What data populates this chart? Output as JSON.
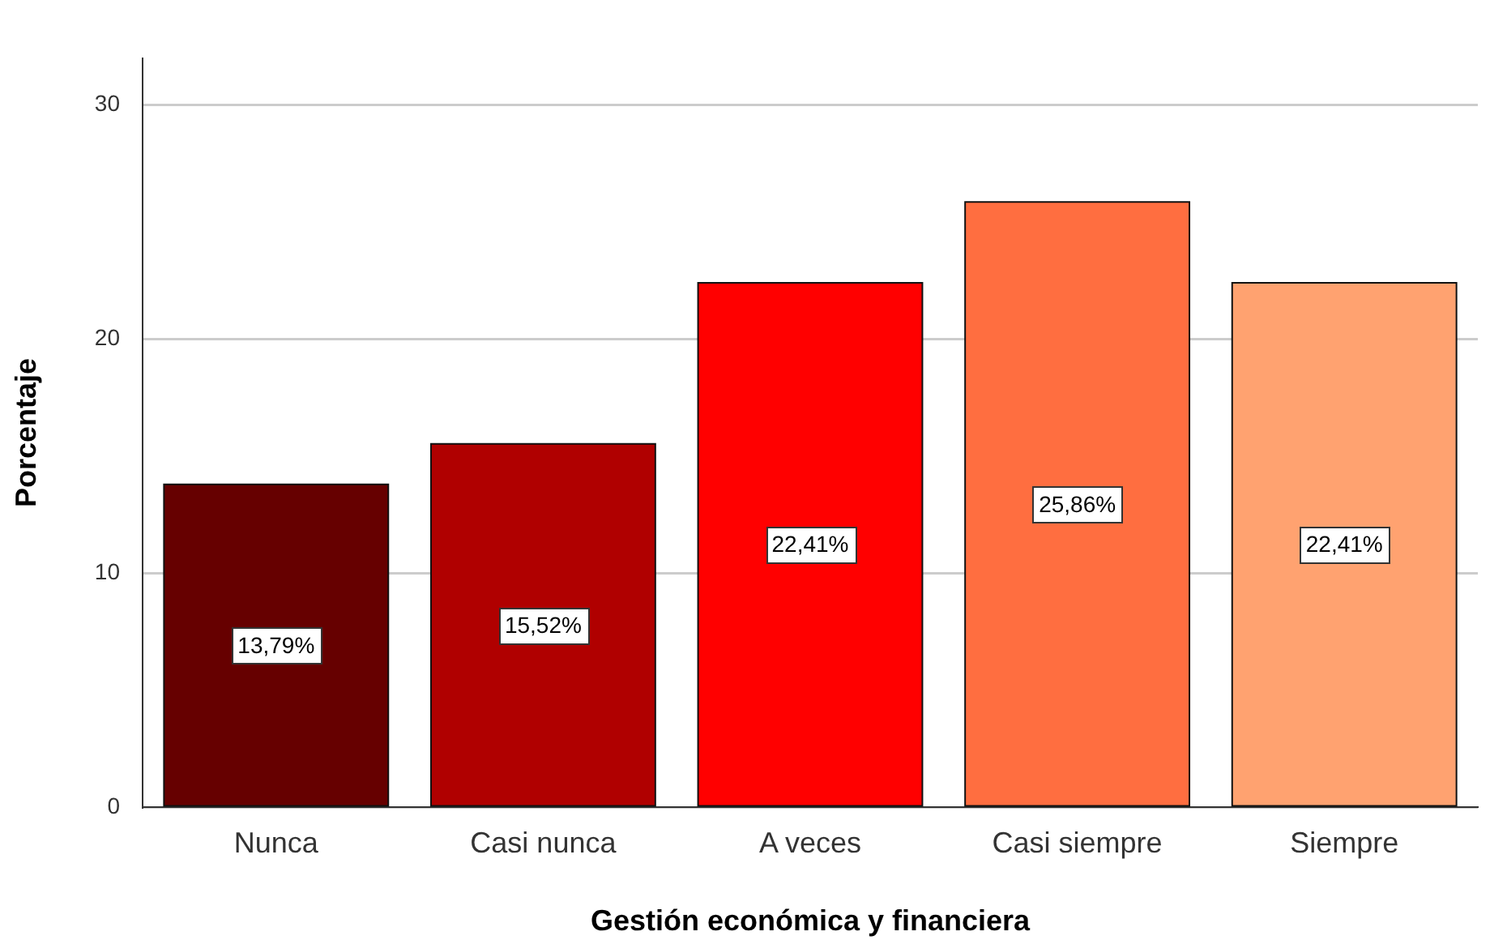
{
  "chart_data": {
    "type": "bar",
    "xlabel": "Gestión económica y financiera",
    "ylabel": "Porcentaje",
    "categories": [
      "Nunca",
      "Casi nunca",
      "A veces",
      "Casi siempre",
      "Siempre"
    ],
    "values": [
      13.79,
      15.52,
      22.41,
      25.86,
      22.41
    ],
    "colors": [
      "#660000",
      "#b00000",
      "#ff0000",
      "#ff6e40",
      "#ffa270"
    ],
    "value_labels": [
      "13,79%",
      "15,52%",
      "22,41%",
      "25,86%",
      "22,41%"
    ],
    "ylim": [
      0,
      32
    ],
    "yticks": [
      0,
      10,
      20,
      30
    ],
    "grid": "y"
  }
}
